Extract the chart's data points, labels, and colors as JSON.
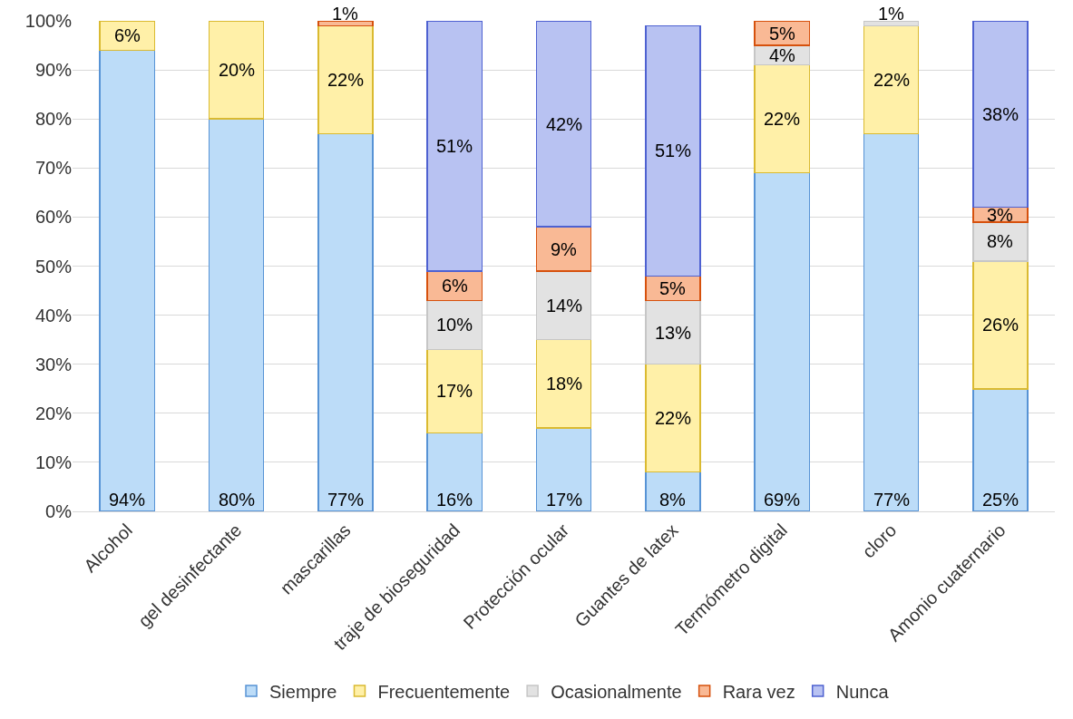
{
  "chart_data": {
    "type": "bar",
    "stacked": true,
    "categories": [
      "Alcohol",
      "gel desinfectante",
      "mascarillas",
      "traje de bioseguridad",
      "Protección ocular",
      "Guantes de latex",
      "Termómetro digital",
      "cloro",
      "Amonio cuaternario"
    ],
    "series": [
      {
        "name": "Siempre",
        "color": "#bcdcf8",
        "values": [
          94,
          80,
          77,
          16,
          17,
          8,
          69,
          77,
          25
        ],
        "value_labels": [
          "94%",
          "80%",
          "77%",
          "16%",
          "17%",
          "8%",
          "69%",
          "77%",
          "25%"
        ]
      },
      {
        "name": "Frecuentemente",
        "color": "#fff0a8",
        "values": [
          6,
          20,
          22,
          17,
          18,
          22,
          22,
          22,
          26
        ],
        "value_labels": [
          "6%",
          "20%",
          "22%",
          "17%",
          "18%",
          "22%",
          "22%",
          "22%",
          "26%"
        ]
      },
      {
        "name": "Ocasionalmente",
        "color": "#e2e2e2",
        "values": [
          null,
          null,
          null,
          10,
          14,
          13,
          4,
          1,
          8
        ],
        "value_labels": [
          null,
          null,
          null,
          "10%",
          "14%",
          "13%",
          "4%",
          "1%",
          "8%"
        ]
      },
      {
        "name": "Rara vez",
        "color": "#f9b995",
        "values": [
          null,
          null,
          1,
          6,
          9,
          5,
          5,
          null,
          3
        ],
        "value_labels": [
          null,
          null,
          "1%",
          "6%",
          "9%",
          "5%",
          "5%",
          null,
          "3%"
        ]
      },
      {
        "name": "Nunca",
        "color": "#b8c2f2",
        "values": [
          null,
          null,
          null,
          51,
          42,
          51,
          null,
          null,
          38
        ],
        "value_labels": [
          null,
          null,
          null,
          "51%",
          "42%",
          "51%",
          null,
          null,
          "38%"
        ]
      }
    ],
    "ylim": [
      0,
      100
    ],
    "yticks": [
      {
        "value": 0,
        "label": "0%"
      },
      {
        "value": 10,
        "label": "10%"
      },
      {
        "value": 20,
        "label": "20%"
      },
      {
        "value": 30,
        "label": "30%"
      },
      {
        "value": 40,
        "label": "40%"
      },
      {
        "value": 50,
        "label": "50%"
      },
      {
        "value": 60,
        "label": "60%"
      },
      {
        "value": 70,
        "label": "70%"
      },
      {
        "value": 80,
        "label": "80%"
      },
      {
        "value": 90,
        "label": "90%"
      },
      {
        "value": 100,
        "label": "100%"
      }
    ],
    "grid": "y",
    "legend": "bottom"
  }
}
